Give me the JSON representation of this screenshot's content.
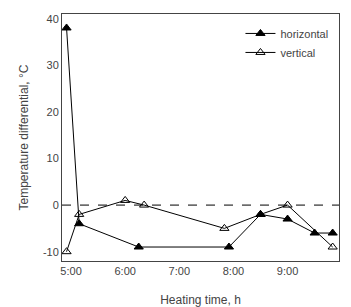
{
  "chart_data": {
    "type": "line",
    "xlabel": "Heating time, h",
    "ylabel": "Temperature differential, °C",
    "series": [
      {
        "name": "horizontal",
        "color": "#000000",
        "marker": "triangle-up",
        "x": [
          4.917,
          5.15,
          6.25,
          7.917,
          8.5,
          9.0,
          9.5,
          9.833
        ],
        "values": [
          38,
          -4,
          -9,
          -9,
          -2,
          -3,
          -6,
          -6
        ]
      },
      {
        "name": "vertical",
        "color": "#000000",
        "marker": "triangle-up-open",
        "x": [
          4.917,
          5.15,
          6.0,
          6.35,
          7.833,
          8.5,
          9.0,
          9.833
        ],
        "values": [
          -10,
          -2,
          1,
          0,
          -5,
          -2,
          0,
          -9
        ]
      }
    ],
    "hlines": [
      {
        "y": 0,
        "line_style": "dashed",
        "color": "#000000"
      }
    ],
    "xlim": [
      4.833,
      9.95
    ],
    "xticks": [
      {
        "value": 5.0,
        "label": "5:00"
      },
      {
        "value": 6.0,
        "label": "6:00"
      },
      {
        "value": 7.0,
        "label": "7:00"
      },
      {
        "value": 8.0,
        "label": "8:00"
      },
      {
        "value": 9.0,
        "label": "9:00"
      }
    ],
    "ylim": [
      -12,
      41
    ],
    "yticks": [
      -10,
      0,
      10,
      20,
      30,
      40
    ],
    "grid": false,
    "legend": "upper right"
  }
}
